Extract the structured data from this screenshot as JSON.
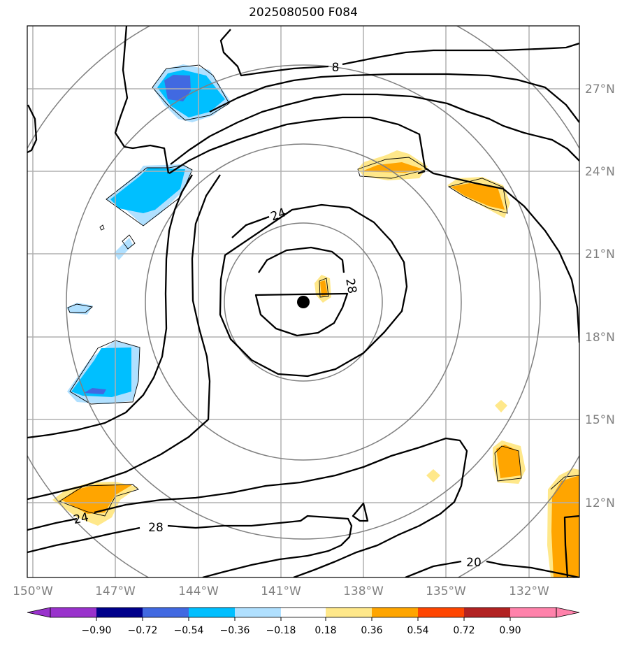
{
  "title": "2025080500 F084",
  "map": {
    "lon_labels": [
      "150°W",
      "147°W",
      "144°W",
      "141°W",
      "138°W",
      "135°W",
      "132°W"
    ],
    "lat_labels": [
      "27°N",
      "24°N",
      "21°N",
      "18°N",
      "15°N",
      "12°N"
    ],
    "gridline_color": "#b0b0b0",
    "range_ring_color": "#808080",
    "storm_center": {
      "lon": -140.0,
      "lat": 19.2
    }
  },
  "contour_labels": [
    "8",
    "24",
    "28",
    "24",
    "28",
    "20"
  ],
  "colorbar": {
    "tick_labels": [
      "−0.90",
      "−0.72",
      "−0.54",
      "−0.36",
      "−0.18",
      "0.18",
      "0.36",
      "0.54",
      "0.72",
      "0.90"
    ],
    "colors": [
      "#9932cc",
      "#00008b",
      "#4169e1",
      "#00bfff",
      "#b0e0ff",
      "#ffffff",
      "#ffe88a",
      "#ffa500",
      "#ff4500",
      "#b22222",
      "#ff82ab"
    ]
  }
}
